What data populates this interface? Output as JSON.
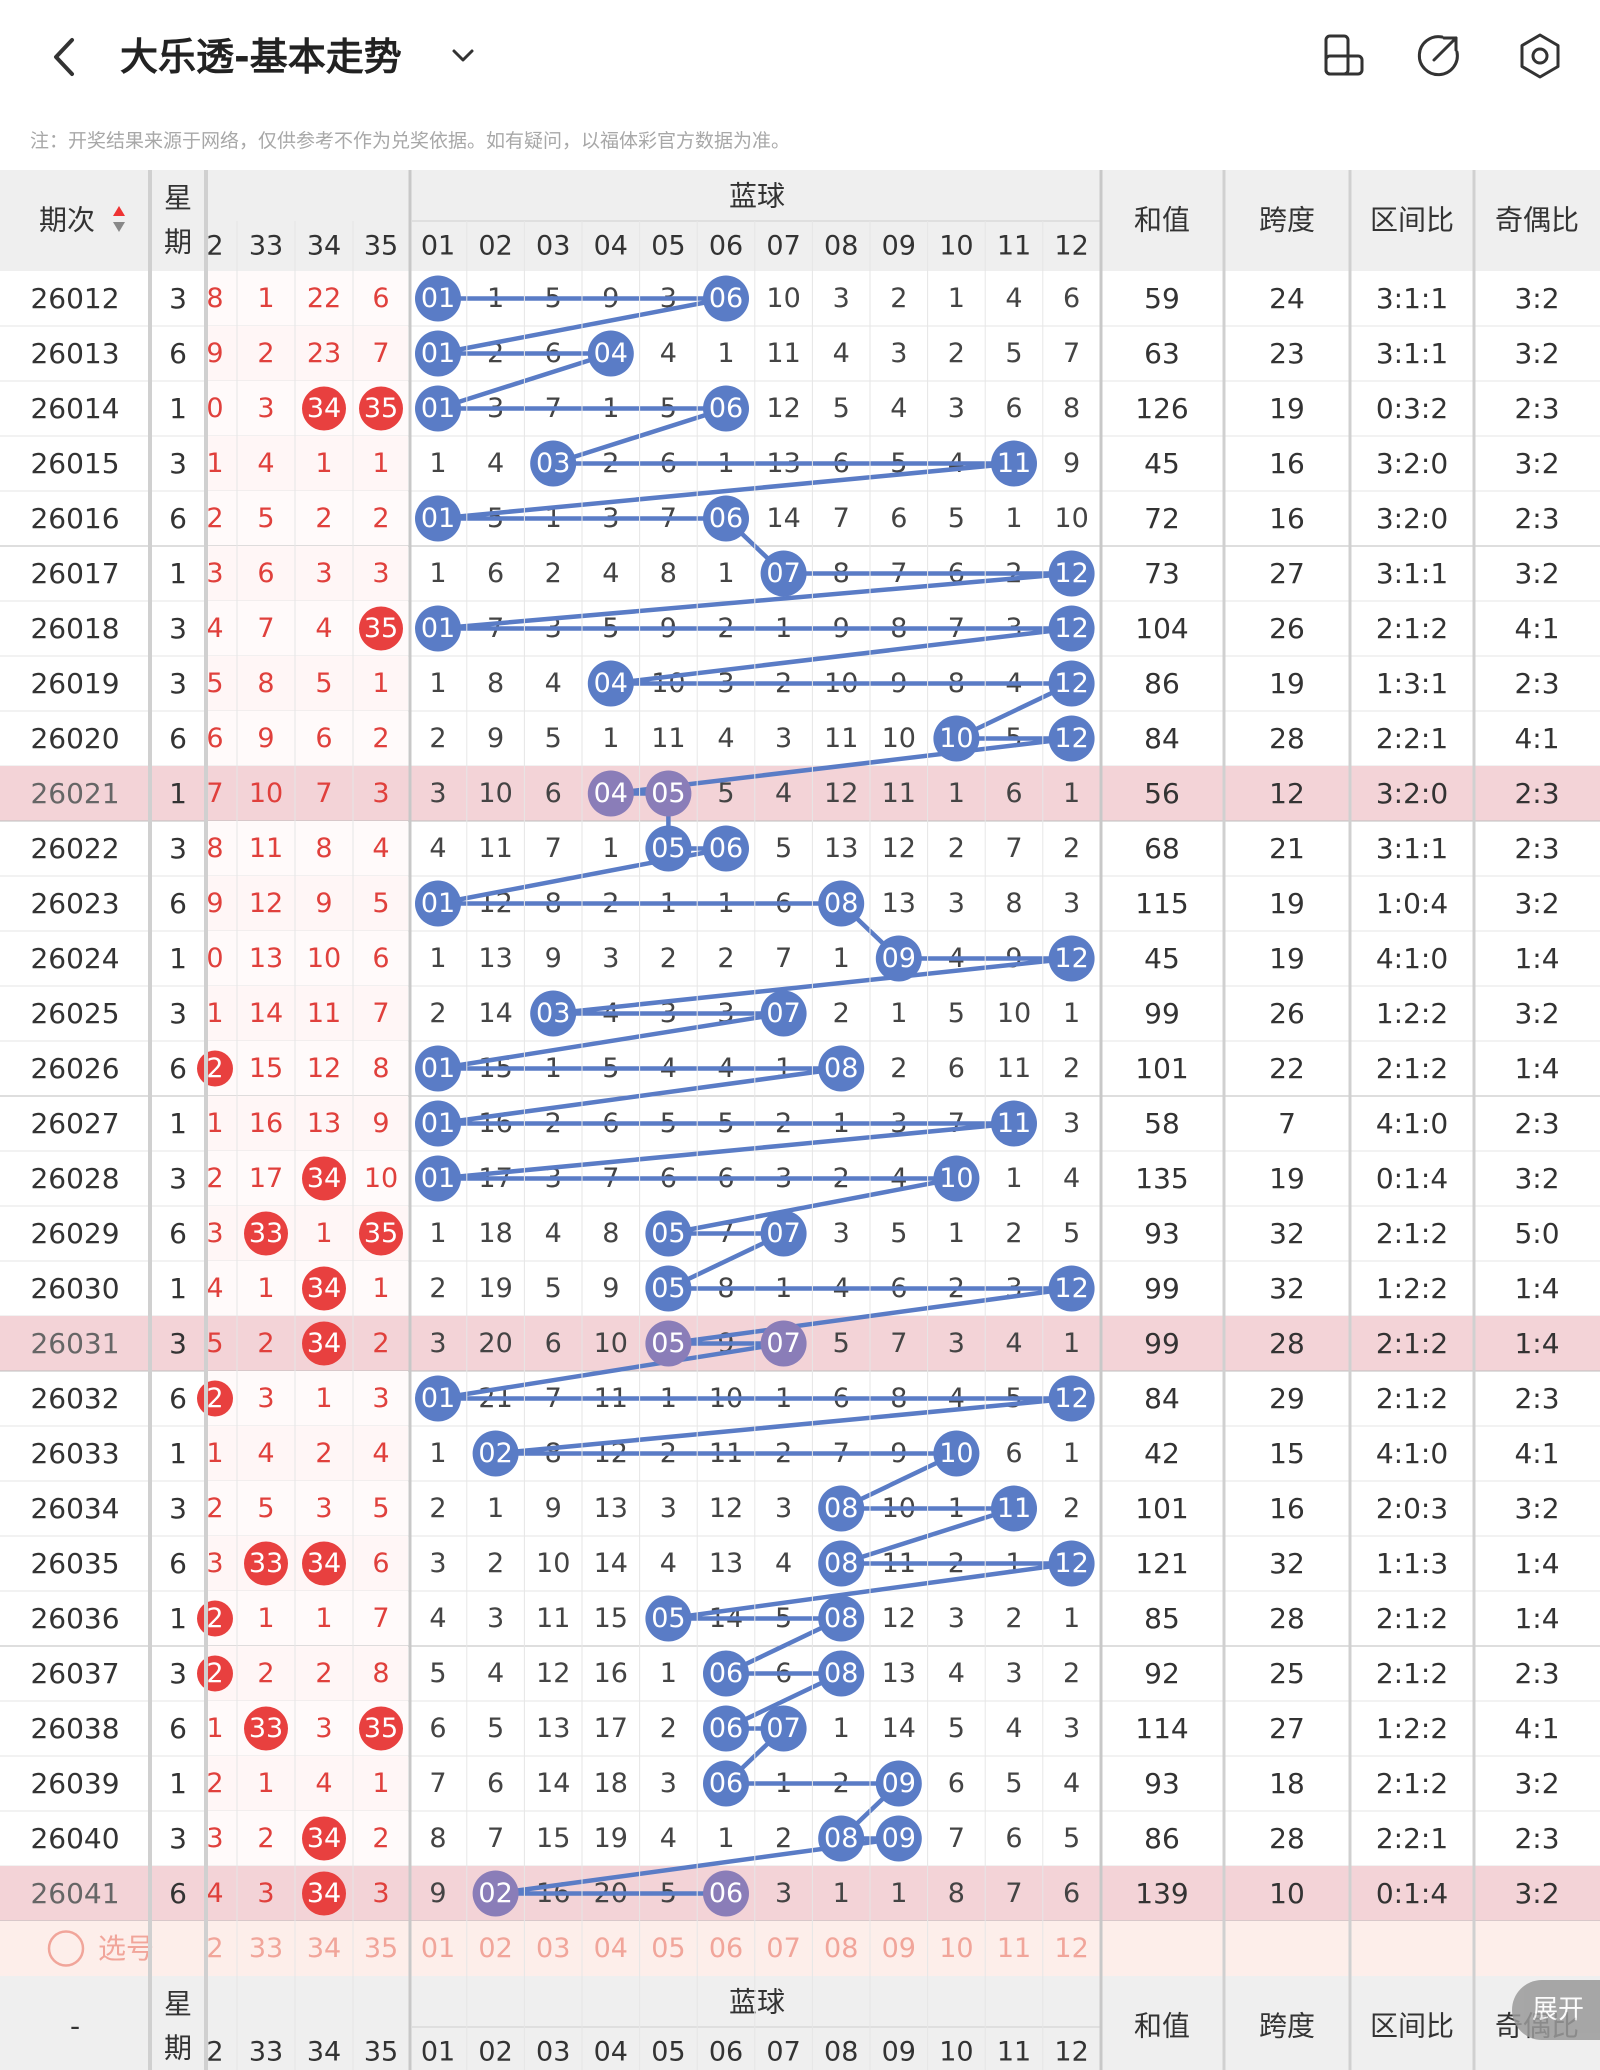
{
  "header": {
    "title": "大乐透-基本走势",
    "note": "注：开奖结果来源于网络，仅供参考不作为兑奖依据。如有疑问，以福体彩官方数据为准。"
  },
  "table": {
    "col_period": "期次",
    "col_weekday": "星期",
    "group_blue": "蓝球",
    "col_sum": "和值",
    "col_span": "跨度",
    "col_zone_ratio": "区间比",
    "col_odd_even": "奇偶比",
    "front_visible_headers": [
      "2",
      "33",
      "34",
      "35"
    ],
    "blue_headers": [
      "01",
      "02",
      "03",
      "04",
      "05",
      "06",
      "07",
      "08",
      "09",
      "10",
      "11",
      "12"
    ],
    "highlighted_periods": [
      "26021",
      "26031",
      "26041"
    ],
    "rows": [
      {
        "period": "26012",
        "weekday": "3",
        "front": [
          "8",
          "1",
          "22",
          "6"
        ],
        "front_hits": [],
        "blue": [
          "01",
          "1",
          "5",
          "9",
          "3",
          "06",
          "10",
          "3",
          "2",
          "1",
          "4",
          "6"
        ],
        "blue_hits": [
          1,
          6
        ],
        "sum": "59",
        "span": "24",
        "zone": "3:1:1",
        "oe": "3:2"
      },
      {
        "period": "26013",
        "weekday": "6",
        "front": [
          "9",
          "2",
          "23",
          "7"
        ],
        "front_hits": [],
        "blue": [
          "01",
          "2",
          "6",
          "04",
          "4",
          "1",
          "11",
          "4",
          "3",
          "2",
          "5",
          "7"
        ],
        "blue_hits": [
          1,
          4
        ],
        "sum": "63",
        "span": "23",
        "zone": "3:1:1",
        "oe": "3:2"
      },
      {
        "period": "26014",
        "weekday": "1",
        "front": [
          "0",
          "3",
          "34",
          "35"
        ],
        "front_hits": [
          2,
          3
        ],
        "blue": [
          "01",
          "3",
          "7",
          "1",
          "5",
          "06",
          "12",
          "5",
          "4",
          "3",
          "6",
          "8"
        ],
        "blue_hits": [
          1,
          6
        ],
        "sum": "126",
        "span": "19",
        "zone": "0:3:2",
        "oe": "2:3"
      },
      {
        "period": "26015",
        "weekday": "3",
        "front": [
          "1",
          "4",
          "1",
          "1"
        ],
        "front_hits": [],
        "blue": [
          "1",
          "4",
          "03",
          "2",
          "6",
          "1",
          "13",
          "6",
          "5",
          "4",
          "11",
          "9"
        ],
        "blue_hits": [
          3,
          11
        ],
        "sum": "45",
        "span": "16",
        "zone": "3:2:0",
        "oe": "3:2"
      },
      {
        "period": "26016",
        "weekday": "6",
        "front": [
          "2",
          "5",
          "2",
          "2"
        ],
        "front_hits": [],
        "blue": [
          "01",
          "5",
          "1",
          "3",
          "7",
          "06",
          "14",
          "7",
          "6",
          "5",
          "1",
          "10"
        ],
        "blue_hits": [
          1,
          6
        ],
        "sum": "72",
        "span": "16",
        "zone": "3:2:0",
        "oe": "2:3"
      },
      {
        "period": "26017",
        "weekday": "1",
        "front": [
          "3",
          "6",
          "3",
          "3"
        ],
        "front_hits": [],
        "blue": [
          "1",
          "6",
          "2",
          "4",
          "8",
          "1",
          "07",
          "8",
          "7",
          "6",
          "2",
          "12"
        ],
        "blue_hits": [
          7,
          12
        ],
        "sum": "73",
        "span": "27",
        "zone": "3:1:1",
        "oe": "3:2"
      },
      {
        "period": "26018",
        "weekday": "3",
        "front": [
          "4",
          "7",
          "4",
          "35"
        ],
        "front_hits": [
          3
        ],
        "blue": [
          "01",
          "7",
          "3",
          "5",
          "9",
          "2",
          "1",
          "9",
          "8",
          "7",
          "3",
          "12"
        ],
        "blue_hits": [
          1,
          12
        ],
        "sum": "104",
        "span": "26",
        "zone": "2:1:2",
        "oe": "4:1"
      },
      {
        "period": "26019",
        "weekday": "3",
        "front": [
          "5",
          "8",
          "5",
          "1"
        ],
        "front_hits": [],
        "blue": [
          "1",
          "8",
          "4",
          "04",
          "10",
          "3",
          "2",
          "10",
          "9",
          "8",
          "4",
          "12"
        ],
        "blue_hits": [
          4,
          12
        ],
        "sum": "86",
        "span": "19",
        "zone": "1:3:1",
        "oe": "2:3"
      },
      {
        "period": "26020",
        "weekday": "6",
        "front": [
          "6",
          "9",
          "6",
          "2"
        ],
        "front_hits": [],
        "blue": [
          "2",
          "9",
          "5",
          "1",
          "11",
          "4",
          "3",
          "11",
          "10",
          "10",
          "5",
          "12"
        ],
        "blue_hits": [
          10,
          12
        ],
        "sum": "84",
        "span": "28",
        "zone": "2:2:1",
        "oe": "4:1"
      },
      {
        "period": "26021",
        "weekday": "1",
        "front": [
          "7",
          "10",
          "7",
          "3"
        ],
        "front_hits": [],
        "blue": [
          "3",
          "10",
          "6",
          "04",
          "05",
          "5",
          "4",
          "12",
          "11",
          "1",
          "6",
          "1"
        ],
        "blue_hits": [
          4,
          5
        ],
        "sum": "56",
        "span": "12",
        "zone": "3:2:0",
        "oe": "2:3"
      },
      {
        "period": "26022",
        "weekday": "3",
        "front": [
          "8",
          "11",
          "8",
          "4"
        ],
        "front_hits": [],
        "blue": [
          "4",
          "11",
          "7",
          "1",
          "05",
          "06",
          "5",
          "13",
          "12",
          "2",
          "7",
          "2"
        ],
        "blue_hits": [
          5,
          6
        ],
        "sum": "68",
        "span": "21",
        "zone": "3:1:1",
        "oe": "2:3"
      },
      {
        "period": "26023",
        "weekday": "6",
        "front": [
          "9",
          "12",
          "9",
          "5"
        ],
        "front_hits": [],
        "blue": [
          "01",
          "12",
          "8",
          "2",
          "1",
          "1",
          "6",
          "08",
          "13",
          "3",
          "8",
          "3"
        ],
        "blue_hits": [
          1,
          8
        ],
        "sum": "115",
        "span": "19",
        "zone": "1:0:4",
        "oe": "3:2"
      },
      {
        "period": "26024",
        "weekday": "1",
        "front": [
          "0",
          "13",
          "10",
          "6"
        ],
        "front_hits": [],
        "blue": [
          "1",
          "13",
          "9",
          "3",
          "2",
          "2",
          "7",
          "1",
          "09",
          "4",
          "9",
          "12"
        ],
        "blue_hits": [
          9,
          12
        ],
        "sum": "45",
        "span": "19",
        "zone": "4:1:0",
        "oe": "1:4"
      },
      {
        "period": "26025",
        "weekday": "3",
        "front": [
          "1",
          "14",
          "11",
          "7"
        ],
        "front_hits": [],
        "blue": [
          "2",
          "14",
          "03",
          "4",
          "3",
          "3",
          "07",
          "2",
          "1",
          "5",
          "10",
          "1"
        ],
        "blue_hits": [
          3,
          7
        ],
        "sum": "99",
        "span": "26",
        "zone": "1:2:2",
        "oe": "3:2"
      },
      {
        "period": "26026",
        "weekday": "6",
        "front": [
          "2",
          "15",
          "12",
          "8"
        ],
        "front_hits": [
          0
        ],
        "blue": [
          "01",
          "15",
          "1",
          "5",
          "4",
          "4",
          "1",
          "08",
          "2",
          "6",
          "11",
          "2"
        ],
        "blue_hits": [
          1,
          8
        ],
        "sum": "101",
        "span": "22",
        "zone": "2:1:2",
        "oe": "1:4"
      },
      {
        "period": "26027",
        "weekday": "1",
        "front": [
          "1",
          "16",
          "13",
          "9"
        ],
        "front_hits": [],
        "blue": [
          "01",
          "16",
          "2",
          "6",
          "5",
          "5",
          "2",
          "1",
          "3",
          "7",
          "11",
          "3"
        ],
        "blue_hits": [
          1,
          11
        ],
        "sum": "58",
        "span": "7",
        "zone": "4:1:0",
        "oe": "2:3"
      },
      {
        "period": "26028",
        "weekday": "3",
        "front": [
          "2",
          "17",
          "34",
          "10"
        ],
        "front_hits": [
          2
        ],
        "blue": [
          "01",
          "17",
          "3",
          "7",
          "6",
          "6",
          "3",
          "2",
          "4",
          "10",
          "1",
          "4"
        ],
        "blue_hits": [
          1,
          10
        ],
        "sum": "135",
        "span": "19",
        "zone": "0:1:4",
        "oe": "3:2"
      },
      {
        "period": "26029",
        "weekday": "6",
        "front": [
          "3",
          "33",
          "1",
          "35"
        ],
        "front_hits": [
          1,
          3
        ],
        "blue": [
          "1",
          "18",
          "4",
          "8",
          "05",
          "7",
          "07",
          "3",
          "5",
          "1",
          "2",
          "5"
        ],
        "blue_hits": [
          5,
          7
        ],
        "sum": "93",
        "span": "32",
        "zone": "2:1:2",
        "oe": "5:0"
      },
      {
        "period": "26030",
        "weekday": "1",
        "front": [
          "4",
          "1",
          "34",
          "1"
        ],
        "front_hits": [
          2
        ],
        "blue": [
          "2",
          "19",
          "5",
          "9",
          "05",
          "8",
          "1",
          "4",
          "6",
          "2",
          "3",
          "12"
        ],
        "blue_hits": [
          5,
          12
        ],
        "sum": "99",
        "span": "32",
        "zone": "1:2:2",
        "oe": "1:4"
      },
      {
        "period": "26031",
        "weekday": "3",
        "front": [
          "5",
          "2",
          "34",
          "2"
        ],
        "front_hits": [
          2
        ],
        "blue": [
          "3",
          "20",
          "6",
          "10",
          "05",
          "9",
          "07",
          "5",
          "7",
          "3",
          "4",
          "1"
        ],
        "blue_hits": [
          5,
          7
        ],
        "sum": "99",
        "span": "28",
        "zone": "2:1:2",
        "oe": "1:4"
      },
      {
        "period": "26032",
        "weekday": "6",
        "front": [
          "2",
          "3",
          "1",
          "3"
        ],
        "front_hits": [
          0
        ],
        "blue": [
          "01",
          "21",
          "7",
          "11",
          "1",
          "10",
          "1",
          "6",
          "8",
          "4",
          "5",
          "12"
        ],
        "blue_hits": [
          1,
          12
        ],
        "sum": "84",
        "span": "29",
        "zone": "2:1:2",
        "oe": "2:3"
      },
      {
        "period": "26033",
        "weekday": "1",
        "front": [
          "1",
          "4",
          "2",
          "4"
        ],
        "front_hits": [],
        "blue": [
          "1",
          "02",
          "8",
          "12",
          "2",
          "11",
          "2",
          "7",
          "9",
          "10",
          "6",
          "1"
        ],
        "blue_hits": [
          2,
          10
        ],
        "sum": "42",
        "span": "15",
        "zone": "4:1:0",
        "oe": "4:1"
      },
      {
        "period": "26034",
        "weekday": "3",
        "front": [
          "2",
          "5",
          "3",
          "5"
        ],
        "front_hits": [],
        "blue": [
          "2",
          "1",
          "9",
          "13",
          "3",
          "12",
          "3",
          "08",
          "10",
          "1",
          "11",
          "2"
        ],
        "blue_hits": [
          8,
          11
        ],
        "sum": "101",
        "span": "16",
        "zone": "2:0:3",
        "oe": "3:2"
      },
      {
        "period": "26035",
        "weekday": "6",
        "front": [
          "3",
          "33",
          "34",
          "6"
        ],
        "front_hits": [
          1,
          2
        ],
        "blue": [
          "3",
          "2",
          "10",
          "14",
          "4",
          "13",
          "4",
          "08",
          "11",
          "2",
          "1",
          "12"
        ],
        "blue_hits": [
          8,
          12
        ],
        "sum": "121",
        "span": "32",
        "zone": "1:1:3",
        "oe": "1:4"
      },
      {
        "period": "26036",
        "weekday": "1",
        "front": [
          "2",
          "1",
          "1",
          "7"
        ],
        "front_hits": [
          0
        ],
        "blue": [
          "4",
          "3",
          "11",
          "15",
          "05",
          "14",
          "5",
          "08",
          "12",
          "3",
          "2",
          "1"
        ],
        "blue_hits": [
          5,
          8
        ],
        "sum": "85",
        "span": "28",
        "zone": "2:1:2",
        "oe": "1:4"
      },
      {
        "period": "26037",
        "weekday": "3",
        "front": [
          "2",
          "2",
          "2",
          "8"
        ],
        "front_hits": [
          0
        ],
        "blue": [
          "5",
          "4",
          "12",
          "16",
          "1",
          "06",
          "6",
          "08",
          "13",
          "4",
          "3",
          "2"
        ],
        "blue_hits": [
          6,
          8
        ],
        "sum": "92",
        "span": "25",
        "zone": "2:1:2",
        "oe": "2:3"
      },
      {
        "period": "26038",
        "weekday": "6",
        "front": [
          "1",
          "33",
          "3",
          "35"
        ],
        "front_hits": [
          1,
          3
        ],
        "blue": [
          "6",
          "5",
          "13",
          "17",
          "2",
          "06",
          "07",
          "1",
          "14",
          "5",
          "4",
          "3"
        ],
        "blue_hits": [
          6,
          7
        ],
        "sum": "114",
        "span": "27",
        "zone": "1:2:2",
        "oe": "4:1"
      },
      {
        "period": "26039",
        "weekday": "1",
        "front": [
          "2",
          "1",
          "4",
          "1"
        ],
        "front_hits": [],
        "blue": [
          "7",
          "6",
          "14",
          "18",
          "3",
          "06",
          "1",
          "2",
          "09",
          "6",
          "5",
          "4"
        ],
        "blue_hits": [
          6,
          9
        ],
        "sum": "93",
        "span": "18",
        "zone": "2:1:2",
        "oe": "3:2"
      },
      {
        "period": "26040",
        "weekday": "3",
        "front": [
          "3",
          "2",
          "34",
          "2"
        ],
        "front_hits": [
          2
        ],
        "blue": [
          "8",
          "7",
          "15",
          "19",
          "4",
          "1",
          "2",
          "08",
          "09",
          "7",
          "6",
          "5"
        ],
        "blue_hits": [
          8,
          9
        ],
        "sum": "86",
        "span": "28",
        "zone": "2:2:1",
        "oe": "2:3"
      },
      {
        "period": "26041",
        "weekday": "6",
        "front": [
          "4",
          "3",
          "34",
          "3"
        ],
        "front_hits": [
          2
        ],
        "blue": [
          "9",
          "02",
          "16",
          "20",
          "5",
          "06",
          "3",
          "1",
          "1",
          "8",
          "7",
          "6"
        ],
        "blue_hits": [
          2,
          6
        ],
        "sum": "139",
        "span": "10",
        "zone": "0:1:4",
        "oe": "3:2"
      }
    ],
    "pick_row": {
      "label": "选号",
      "front": [
        "2",
        "33",
        "34",
        "35"
      ],
      "blue": [
        "01",
        "02",
        "03",
        "04",
        "05",
        "06",
        "07",
        "08",
        "09",
        "10",
        "11",
        "12"
      ]
    },
    "footer_period": "-"
  },
  "expand_button": "展开",
  "colors": {
    "blue_ball": "#5a7cc6",
    "blue_ball_highlight": "#8a7db8",
    "red_ball": "#e8403f",
    "red_text": "#e0403c",
    "highlight_row": "#f3d3d7",
    "header_bg": "#efefef",
    "pick_row_bg": "#fdeeea",
    "pick_text": "#f1a59a"
  },
  "icons": [
    "back-icon",
    "chevron-down-icon",
    "phone-landscape-icon",
    "share-icon",
    "settings-icon",
    "radio-circle-icon"
  ]
}
